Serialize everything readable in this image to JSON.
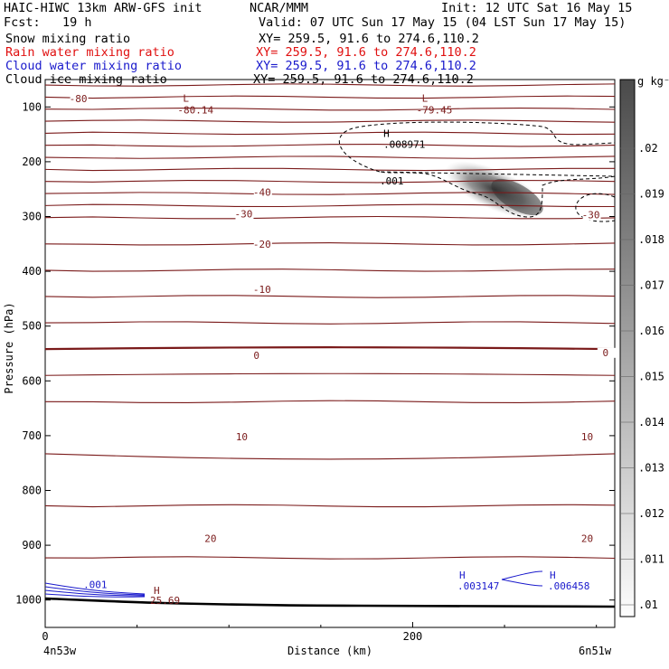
{
  "header": {
    "line1_left": "HAIC-HIWC 13km ARW-GFS init",
    "line1_mid": "NCAR/MMM",
    "line1_right": "Init: 12 UTC Sat 16 May 15",
    "line2_left": "Fcst:   19 h",
    "line2_right": "Valid: 07 UTC Sun 17 May 15 (04 LST Sun 17 May 15)",
    "fields": [
      {
        "name": "Snow mixing ratio",
        "xy": "XY= 259.5, 91.6 to 274.6,110.2",
        "color": "#000000"
      },
      {
        "name": "Rain water mixing ratio",
        "xy": "XY= 259.5, 91.6 to 274.6,110.2",
        "color": "#e01010"
      },
      {
        "name": "Cloud water mixing ratio",
        "xy": "XY= 259.5, 91.6 to 274.6,110.2",
        "color": "#1a1acc"
      },
      {
        "name": "Cloud ice mixing ratio",
        "xy": "XY= 259.5, 91.6 to 274.6,110.2",
        "color": "#000000"
      }
    ]
  },
  "chart_data": {
    "type": "contour",
    "xlabel": "Distance (km)",
    "ylabel": "Pressure (hPa)",
    "x_ticks": [
      0,
      200
    ],
    "y_ticks": [
      100,
      200,
      300,
      400,
      500,
      600,
      700,
      800,
      900,
      1000
    ],
    "ylim": [
      1050,
      50
    ],
    "xlim": [
      0,
      310
    ],
    "x_endpoints": {
      "left": "4n53w",
      "right": "6n51w"
    },
    "colorbar": {
      "unit": "g kg⁻¹",
      "levels": [
        ".02",
        ".019",
        ".018",
        ".017",
        ".016",
        ".015",
        ".014",
        ".013",
        ".012",
        ".011",
        ".01"
      ]
    },
    "temperature_contours": {
      "color": "#7a1a1a",
      "labels": [
        {
          "text": "-80",
          "x": 18,
          "p": 90
        },
        {
          "text": "-40",
          "x": 118,
          "p": 260
        },
        {
          "text": "-30",
          "x": 108,
          "p": 300
        },
        {
          "text": "-30",
          "x": 297,
          "p": 302
        },
        {
          "text": "-20",
          "x": 118,
          "p": 355
        },
        {
          "text": "-10",
          "x": 118,
          "p": 438
        },
        {
          "text": "0",
          "x": 115,
          "p": 558
        },
        {
          "text": "0",
          "x": 305,
          "p": 553
        },
        {
          "text": "10",
          "x": 107,
          "p": 707
        },
        {
          "text": "10",
          "x": 295,
          "p": 707
        },
        {
          "text": "20",
          "x": 90,
          "p": 892
        },
        {
          "text": "20",
          "x": 295,
          "p": 892
        }
      ],
      "extrema": [
        {
          "type": "L",
          "value": "-80.14",
          "x": 75,
          "p": 97
        },
        {
          "type": "L",
          "value": "-79.45",
          "x": 205,
          "p": 97
        }
      ]
    },
    "cloud_ice": {
      "color": "#000000",
      "labels": [
        {
          "text": ".001",
          "x": 188,
          "p": 238
        }
      ],
      "extrema": [
        {
          "type": "H",
          "value": ".008971",
          "x": 188,
          "p": 165
        }
      ]
    },
    "cloud_water": {
      "color": "#1a1acc",
      "labels": [
        {
          "text": ".001",
          "x": 33,
          "p": 988
        }
      ],
      "extrema": [
        {
          "type": "H",
          "value": ".003147",
          "x": 228,
          "p": 970
        },
        {
          "type": "H",
          "value": ".006458",
          "x": 278,
          "p": 970
        }
      ]
    },
    "rain_water": {
      "color": "#e01010",
      "extrema": [
        {
          "type": "H",
          "value": "25.69",
          "x": 60,
          "p": 992
        }
      ]
    }
  }
}
